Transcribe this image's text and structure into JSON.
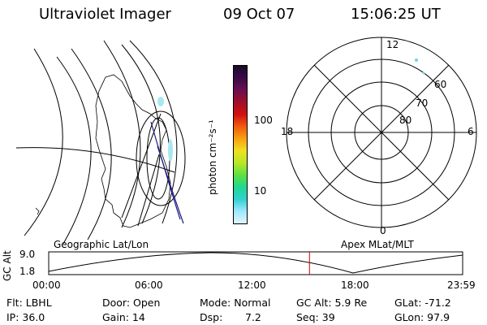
{
  "header": {
    "instrument": "Ultraviolet Imager",
    "date": "09 Oct 07",
    "time": "15:06:25 UT"
  },
  "colorbar": {
    "unit_label": "photon cm⁻²s⁻¹",
    "ticks": [
      "100",
      "10"
    ],
    "colors": [
      "#1a0a2a",
      "#3a0a4a",
      "#6a1050",
      "#a0102a",
      "#d01010",
      "#f05a10",
      "#f8a010",
      "#f0e020",
      "#b8e828",
      "#60e040",
      "#20d890",
      "#30d0d0",
      "#a0e8ff",
      "#e0f4ff"
    ]
  },
  "polar": {
    "mlt_labels": {
      "top": "12",
      "left": "18",
      "right": "6",
      "bottom": "0"
    },
    "lat_labels": [
      "60",
      "70",
      "80"
    ]
  },
  "timeline": {
    "ylabel": "GC Alt",
    "ymax": "9.0",
    "ymin": "1.8",
    "left_title": "Geographic Lat/Lon",
    "right_title": "Apex MLat/MLT",
    "xticks": [
      "00:00",
      "06:00",
      "12:00",
      "18:00",
      "23:59"
    ],
    "current_fraction": 0.63,
    "marker_color": "#cc0000"
  },
  "info": {
    "flt": "Flt: LBHL",
    "ip": "IP: 36.0",
    "door": "Door: Open",
    "gain": "Gain: 14",
    "mode": "Mode: Normal",
    "dsp_label": "Dsp:",
    "dsp_value": "7.2",
    "gcalt": "GC Alt: 5.9 Re",
    "seq": "Seq: 39",
    "glat": "GLat: -71.2",
    "glon": "GLon: 97.9"
  }
}
